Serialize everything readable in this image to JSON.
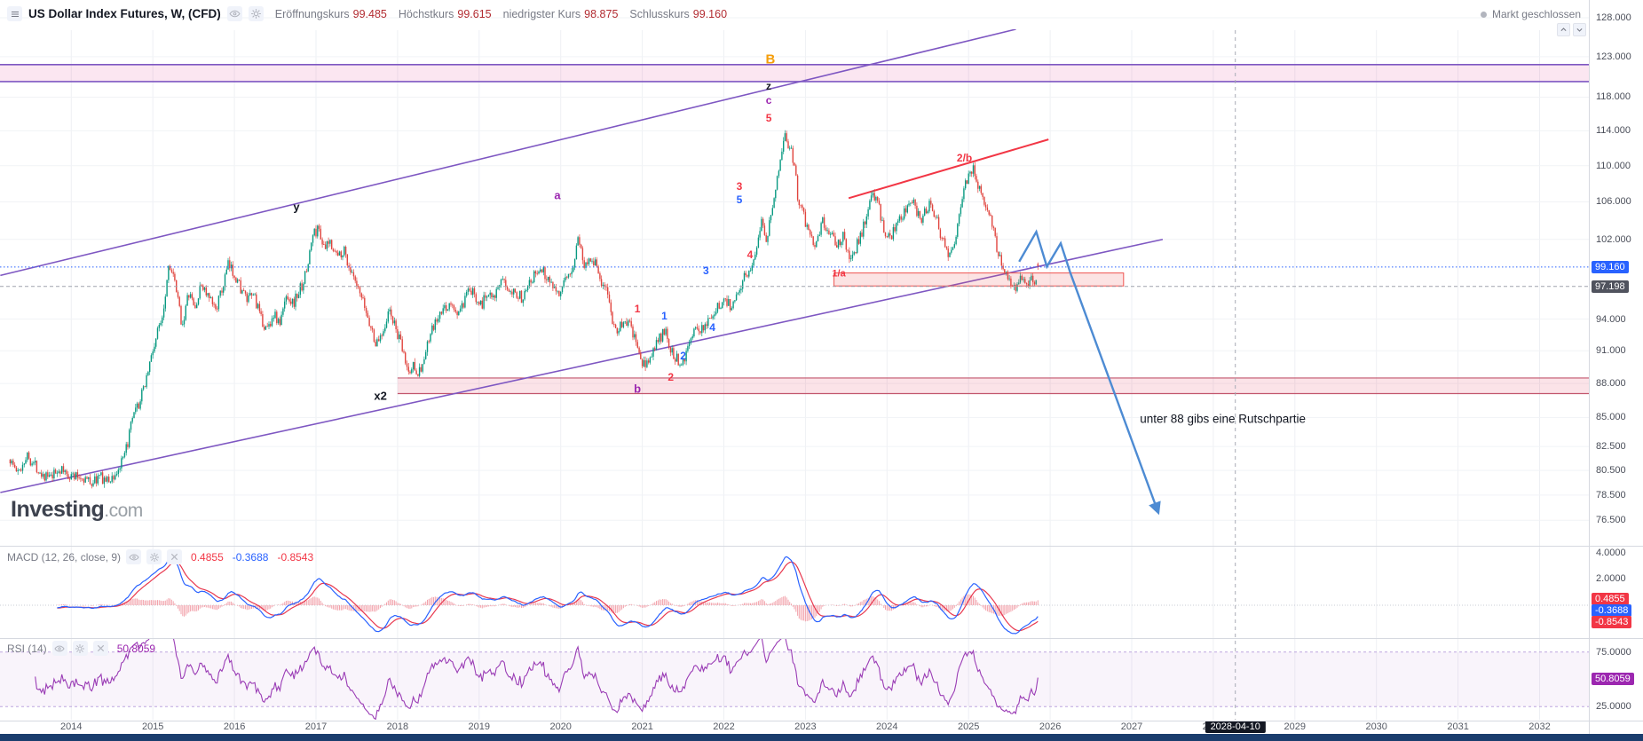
{
  "header": {
    "symbol_title": "US Dollar Index Futures, W, (CFD)",
    "ohlc": [
      {
        "label": "Eröffnungskurs",
        "value": "99.485"
      },
      {
        "label": "Höchstkurs",
        "value": "99.615"
      },
      {
        "label": "niedrigster Kurs",
        "value": "98.875"
      },
      {
        "label": "Schlusskurs",
        "value": "99.160"
      }
    ],
    "market_status": "Markt geschlossen"
  },
  "watermark": {
    "brand": "Investing",
    "suffix": ".com"
  },
  "price_axis": {
    "ticks": [
      "128.000",
      "123.000",
      "118.000",
      "114.000",
      "110.000",
      "106.000",
      "102.000",
      "94.000",
      "91.000",
      "88.000",
      "85.000",
      "82.500",
      "80.500",
      "78.500",
      "76.500"
    ],
    "last_badge": "99.160",
    "secondary_badge": "97.198"
  },
  "macd": {
    "title": "MACD (12, 26, close, 9)",
    "values": [
      "0.4855",
      "-0.3688",
      "-0.8543"
    ],
    "ticks": [
      "4.0000",
      "2.0000"
    ],
    "badges": [
      "0.4855",
      "-0.3688",
      "-0.8543"
    ]
  },
  "rsi": {
    "title": "RSI (14)",
    "value": "50.8059",
    "ticks": [
      "75.0000",
      "25.0000"
    ],
    "badge": "50.8059"
  },
  "time_axis": {
    "years": [
      "2014",
      "2015",
      "2016",
      "2017",
      "2018",
      "2019",
      "2020",
      "2021",
      "2022",
      "2023",
      "2024",
      "2025",
      "2026",
      "2027",
      "2028",
      "2029",
      "2030",
      "2031",
      "2032"
    ],
    "date_badge": "2028-04-10"
  },
  "annotations": {
    "note": {
      "text": "unter 88 gibs eine Rutschpartie",
      "t": 2027.1,
      "p": 84.9
    },
    "wave_labels": [
      {
        "text": "B",
        "t": 2022.57,
        "p": 122.6,
        "color": "#f59e0b",
        "size": 15
      },
      {
        "text": "z",
        "t": 2022.55,
        "p": 119.4,
        "color": "#131722",
        "size": 12
      },
      {
        "text": "c",
        "t": 2022.55,
        "p": 117.6,
        "color": "#9c27b0",
        "size": 12
      },
      {
        "text": "5",
        "t": 2022.55,
        "p": 115.5,
        "color": "#f23645",
        "size": 12
      },
      {
        "text": "3",
        "t": 2022.19,
        "p": 107.7,
        "color": "#f23645",
        "size": 12
      },
      {
        "text": "5",
        "t": 2022.19,
        "p": 106.2,
        "color": "#2962ff",
        "size": 12
      },
      {
        "text": "4",
        "t": 2022.32,
        "p": 100.4,
        "color": "#f23645",
        "size": 12
      },
      {
        "text": "3",
        "t": 2021.78,
        "p": 98.8,
        "color": "#2962ff",
        "size": 12
      },
      {
        "text": "a",
        "t": 2019.96,
        "p": 106.7,
        "color": "#9c27b0",
        "size": 13
      },
      {
        "text": "y",
        "t": 2016.76,
        "p": 105.5,
        "color": "#131722",
        "size": 13
      },
      {
        "text": "x2",
        "t": 2017.79,
        "p": 86.9,
        "color": "#131722",
        "size": 13
      },
      {
        "text": "b",
        "t": 2020.94,
        "p": 87.5,
        "color": "#9c27b0",
        "size": 13
      },
      {
        "text": "1",
        "t": 2020.94,
        "p": 95.0,
        "color": "#f23645",
        "size": 12
      },
      {
        "text": "1",
        "t": 2021.27,
        "p": 94.3,
        "color": "#2962ff",
        "size": 12
      },
      {
        "text": "2",
        "t": 2021.5,
        "p": 90.5,
        "color": "#2962ff",
        "size": 12
      },
      {
        "text": "4",
        "t": 2021.86,
        "p": 93.2,
        "color": "#2962ff",
        "size": 12
      },
      {
        "text": "2",
        "t": 2021.35,
        "p": 88.6,
        "color": "#f23645",
        "size": 12
      },
      {
        "text": "1/a",
        "t": 2023.41,
        "p": 98.4,
        "color": "#f23645",
        "size": 11
      },
      {
        "text": "2/b",
        "t": 2024.95,
        "p": 110.9,
        "color": "#f23645",
        "size": 12
      }
    ]
  },
  "icons": {
    "header": [
      "menu-icon",
      "eye-icon",
      "gear-icon"
    ],
    "panel_controls": [
      "chevron-up-icon",
      "chevron-down-icon"
    ],
    "indicator_rows": [
      "eye-icon",
      "gear-icon",
      "close-icon"
    ],
    "market_status": "dot-icon"
  },
  "colors": {
    "candle_up": "#089981",
    "candle_down": "#e0443e",
    "channel": "#7e57c2",
    "trend_red": "#f23645",
    "projection": "#4d8bd3",
    "macd_line": "#2962ff",
    "macd_signal": "#e8384f",
    "macd_hist": "#f2a3ac",
    "rsi_line": "#9a3cb5",
    "value_red": "#b22b31",
    "badge_blue": "#2962ff",
    "badge_dark": "#50535e",
    "badge_red": "#f23645",
    "badge_purple": "#9c27b0"
  },
  "chart_data": {
    "type": "candlestick",
    "symbol": "US Dollar Index Futures",
    "timeframe": "W",
    "instrument_type": "CFD",
    "price_scale": "log",
    "x_domain_years": [
      2013.1,
      2032.6
    ],
    "y_domain_price": [
      76.5,
      128.0
    ],
    "last": {
      "open": 99.485,
      "high": 99.615,
      "low": 98.875,
      "close": 99.16
    },
    "weekly_close_anchors": [
      [
        2013.25,
        81.4
      ],
      [
        2013.35,
        80.2
      ],
      [
        2013.45,
        81.8
      ],
      [
        2013.55,
        81.0
      ],
      [
        2013.65,
        80.2
      ],
      [
        2013.75,
        79.8
      ],
      [
        2013.85,
        80.6
      ],
      [
        2013.95,
        80.2
      ],
      [
        2014.05,
        80.0
      ],
      [
        2014.15,
        79.9
      ],
      [
        2014.25,
        79.5
      ],
      [
        2014.35,
        80.0
      ],
      [
        2014.45,
        79.6
      ],
      [
        2014.55,
        80.2
      ],
      [
        2014.65,
        81.5
      ],
      [
        2014.75,
        84.8
      ],
      [
        2014.85,
        86.5
      ],
      [
        2014.95,
        89.5
      ],
      [
        2015.05,
        92.5
      ],
      [
        2015.13,
        95.0
      ],
      [
        2015.2,
        99.8
      ],
      [
        2015.28,
        97.0
      ],
      [
        2015.36,
        93.4
      ],
      [
        2015.44,
        96.5
      ],
      [
        2015.52,
        95.0
      ],
      [
        2015.6,
        97.5
      ],
      [
        2015.68,
        96.0
      ],
      [
        2015.76,
        95.0
      ],
      [
        2015.84,
        96.5
      ],
      [
        2015.92,
        99.3
      ],
      [
        2016.0,
        98.5
      ],
      [
        2016.08,
        97.0
      ],
      [
        2016.16,
        95.7
      ],
      [
        2016.24,
        96.5
      ],
      [
        2016.32,
        94.0
      ],
      [
        2016.4,
        93.0
      ],
      [
        2016.48,
        94.5
      ],
      [
        2016.56,
        93.5
      ],
      [
        2016.64,
        96.5
      ],
      [
        2016.72,
        95.5
      ],
      [
        2016.8,
        96.8
      ],
      [
        2016.88,
        98.5
      ],
      [
        2016.96,
        102.5
      ],
      [
        2017.04,
        103.2
      ],
      [
        2017.1,
        100.8
      ],
      [
        2017.18,
        101.8
      ],
      [
        2017.26,
        100.2
      ],
      [
        2017.34,
        101.0
      ],
      [
        2017.42,
        98.8
      ],
      [
        2017.5,
        97.0
      ],
      [
        2017.58,
        95.5
      ],
      [
        2017.66,
        93.5
      ],
      [
        2017.74,
        91.5
      ],
      [
        2017.82,
        93.0
      ],
      [
        2017.9,
        94.8
      ],
      [
        2017.98,
        93.0
      ],
      [
        2018.06,
        91.0
      ],
      [
        2018.14,
        88.8
      ],
      [
        2018.2,
        89.8
      ],
      [
        2018.26,
        88.9
      ],
      [
        2018.32,
        90.0
      ],
      [
        2018.4,
        92.5
      ],
      [
        2018.48,
        93.8
      ],
      [
        2018.56,
        94.8
      ],
      [
        2018.64,
        95.5
      ],
      [
        2018.72,
        94.5
      ],
      [
        2018.8,
        95.2
      ],
      [
        2018.88,
        96.8
      ],
      [
        2018.96,
        96.2
      ],
      [
        2019.04,
        95.5
      ],
      [
        2019.12,
        96.8
      ],
      [
        2019.2,
        96.5
      ],
      [
        2019.28,
        97.5
      ],
      [
        2019.36,
        97.2
      ],
      [
        2019.44,
        96.8
      ],
      [
        2019.52,
        96.0
      ],
      [
        2019.6,
        97.8
      ],
      [
        2019.68,
        98.3
      ],
      [
        2019.76,
        99.0
      ],
      [
        2019.84,
        98.0
      ],
      [
        2019.92,
        97.3
      ],
      [
        2020.0,
        96.5
      ],
      [
        2020.08,
        98.0
      ],
      [
        2020.16,
        99.5
      ],
      [
        2020.22,
        102.6
      ],
      [
        2020.28,
        99.0
      ],
      [
        2020.34,
        100.2
      ],
      [
        2020.42,
        99.8
      ],
      [
        2020.5,
        97.5
      ],
      [
        2020.58,
        96.3
      ],
      [
        2020.66,
        93.0
      ],
      [
        2020.74,
        93.3
      ],
      [
        2020.82,
        93.8
      ],
      [
        2020.9,
        92.3
      ],
      [
        2020.98,
        90.0
      ],
      [
        2021.04,
        89.6
      ],
      [
        2021.12,
        90.8
      ],
      [
        2021.2,
        92.0
      ],
      [
        2021.28,
        92.8
      ],
      [
        2021.36,
        91.0
      ],
      [
        2021.44,
        90.0
      ],
      [
        2021.52,
        90.5
      ],
      [
        2021.6,
        92.5
      ],
      [
        2021.68,
        92.8
      ],
      [
        2021.76,
        93.5
      ],
      [
        2021.84,
        94.2
      ],
      [
        2021.92,
        95.0
      ],
      [
        2022.0,
        96.0
      ],
      [
        2022.08,
        95.3
      ],
      [
        2022.16,
        96.5
      ],
      [
        2022.24,
        98.0
      ],
      [
        2022.32,
        99.0
      ],
      [
        2022.4,
        101.0
      ],
      [
        2022.46,
        104.5
      ],
      [
        2022.52,
        102.0
      ],
      [
        2022.58,
        105.0
      ],
      [
        2022.64,
        107.5
      ],
      [
        2022.7,
        111.0
      ],
      [
        2022.74,
        114.0
      ],
      [
        2022.78,
        112.5
      ],
      [
        2022.82,
        111.8
      ],
      [
        2022.86,
        110.5
      ],
      [
        2022.9,
        107.0
      ],
      [
        2022.96,
        104.8
      ],
      [
        2023.02,
        103.5
      ],
      [
        2023.08,
        102.0
      ],
      [
        2023.14,
        101.5
      ],
      [
        2023.2,
        104.2
      ],
      [
        2023.26,
        103.0
      ],
      [
        2023.32,
        102.2
      ],
      [
        2023.4,
        101.5
      ],
      [
        2023.46,
        102.5
      ],
      [
        2023.52,
        100.5
      ],
      [
        2023.58,
        100.0
      ],
      [
        2023.64,
        101.8
      ],
      [
        2023.7,
        103.0
      ],
      [
        2023.76,
        105.0
      ],
      [
        2023.82,
        106.8
      ],
      [
        2023.88,
        106.0
      ],
      [
        2023.94,
        104.0
      ],
      [
        2024.0,
        101.8
      ],
      [
        2024.06,
        102.5
      ],
      [
        2024.12,
        103.5
      ],
      [
        2024.18,
        104.2
      ],
      [
        2024.24,
        105.5
      ],
      [
        2024.3,
        106.2
      ],
      [
        2024.36,
        105.0
      ],
      [
        2024.42,
        104.3
      ],
      [
        2024.48,
        105.3
      ],
      [
        2024.54,
        105.8
      ],
      [
        2024.6,
        104.5
      ],
      [
        2024.66,
        102.5
      ],
      [
        2024.72,
        101.0
      ],
      [
        2024.78,
        100.3
      ],
      [
        2024.84,
        102.5
      ],
      [
        2024.9,
        105.5
      ],
      [
        2024.96,
        107.8
      ],
      [
        2025.02,
        109.5
      ],
      [
        2025.06,
        109.9
      ],
      [
        2025.12,
        107.5
      ],
      [
        2025.18,
        106.8
      ],
      [
        2025.24,
        104.5
      ],
      [
        2025.3,
        103.5
      ],
      [
        2025.36,
        100.5
      ],
      [
        2025.42,
        99.5
      ],
      [
        2025.48,
        98.0
      ],
      [
        2025.54,
        96.8
      ],
      [
        2025.6,
        97.3
      ],
      [
        2025.66,
        98.5
      ],
      [
        2025.72,
        97.6
      ],
      [
        2025.78,
        98.3
      ],
      [
        2025.82,
        97.5
      ],
      [
        2025.85,
        99.16
      ]
    ],
    "overlays": {
      "resistance_band": {
        "price_from": 119.9,
        "price_to": 122.0,
        "fill": "rgba(224,64,145,0.13)",
        "border": "#7e57c2"
      },
      "support_band": {
        "price_from": 87.1,
        "price_to": 88.5,
        "start_year": 2018.0,
        "fill": "rgba(230,57,95,0.14)",
        "border": "#c2566d"
      },
      "support_box": {
        "t1": 2023.35,
        "t2": 2026.9,
        "price_from": 97.25,
        "price_to": 98.55,
        "fill": "rgba(239,83,80,0.16)",
        "border": "#ef5350"
      },
      "channel_lines": [
        {
          "t1": 2013.13,
          "p1": 78.7,
          "t2": 2027.38,
          "p2": 102.0
        },
        {
          "t1": 2013.13,
          "p1": 98.3,
          "t2": 2025.58,
          "p2": 126.5
        }
      ],
      "red_trendline": {
        "t1": 2023.53,
        "p1": 106.4,
        "t2": 2025.98,
        "p2": 113.0
      },
      "projection_path": {
        "points_t_p": [
          [
            2025.62,
            99.7
          ],
          [
            2025.83,
            102.8
          ],
          [
            2025.96,
            99.2
          ],
          [
            2026.13,
            101.6
          ],
          [
            2026.25,
            98.5
          ],
          [
            2027.32,
            77.2
          ]
        ]
      },
      "current_price_line": 99.16,
      "dashed_level": 97.198,
      "vertical_date_line_year": 2028.27
    },
    "indicators": {
      "macd": {
        "fast": 12,
        "slow": 26,
        "signal": 9,
        "histogram_value": 0.4855,
        "macd_value": -0.3688,
        "signal_value": -0.8543
      },
      "rsi": {
        "period": 14,
        "value": 50.8059,
        "upper_band": 75,
        "lower_band": 25
      }
    }
  }
}
